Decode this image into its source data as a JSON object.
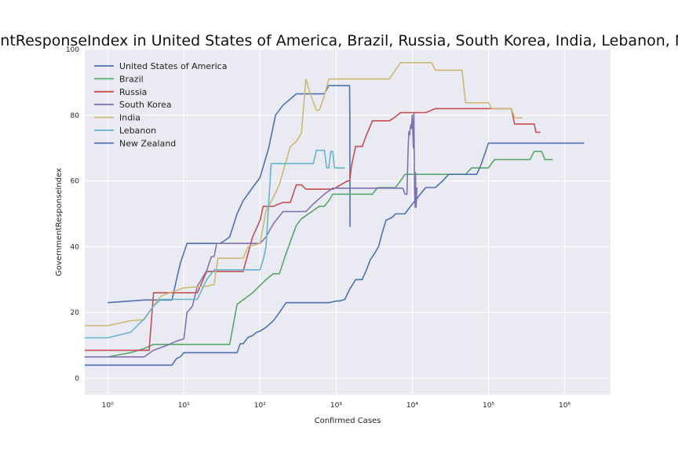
{
  "chart_data": {
    "type": "line",
    "title": "GovernmentResponseIndex in United States of America, Brazil, Russia, South Korea, India, Lebanon, New Zealand",
    "xlabel": "Confirmed Cases",
    "ylabel": "GovernmentResponseIndex",
    "xscale": "log",
    "xlim": [
      0.5,
      4000000
    ],
    "ylim": [
      -5,
      100
    ],
    "xticks": [
      {
        "value": 1,
        "label": "10⁰"
      },
      {
        "value": 10,
        "label": "10¹"
      },
      {
        "value": 100,
        "label": "10²"
      },
      {
        "value": 1000,
        "label": "10³"
      },
      {
        "value": 10000,
        "label": "10⁴"
      },
      {
        "value": 100000,
        "label": "10⁵"
      },
      {
        "value": 1000000,
        "label": "10⁶"
      }
    ],
    "yticks": [
      0,
      20,
      40,
      60,
      80,
      100
    ],
    "grid": true,
    "legend_position": "top-left",
    "background": "#eaeaf2",
    "series": [
      {
        "name": "United States of America",
        "color": "#4c72b0",
        "points": [
          [
            1,
            23
          ],
          [
            2,
            23.5
          ],
          [
            3,
            23.8
          ],
          [
            5,
            23.8
          ],
          [
            7,
            23.8
          ],
          [
            8,
            30
          ],
          [
            9,
            35
          ],
          [
            11,
            41
          ],
          [
            20,
            41
          ],
          [
            25,
            41
          ],
          [
            30,
            41
          ],
          [
            35,
            42
          ],
          [
            40,
            43
          ],
          [
            50,
            50
          ],
          [
            60,
            54
          ],
          [
            80,
            58
          ],
          [
            100,
            61
          ],
          [
            130,
            70
          ],
          [
            160,
            80
          ],
          [
            200,
            83
          ],
          [
            300,
            86.5
          ],
          [
            500,
            86.5
          ],
          [
            700,
            86.5
          ],
          [
            800,
            89
          ],
          [
            1500,
            89
          ],
          [
            1510,
            80
          ],
          [
            1520,
            46
          ]
        ]
      },
      {
        "name": "Brazil",
        "color": "#55a868",
        "points": [
          [
            1,
            6.5
          ],
          [
            2,
            7.8
          ],
          [
            3,
            9
          ],
          [
            4,
            10.3
          ],
          [
            10,
            10.3
          ],
          [
            40,
            10.3
          ],
          [
            50,
            22.5
          ],
          [
            80,
            26
          ],
          [
            120,
            30
          ],
          [
            150,
            31.8
          ],
          [
            180,
            31.8
          ],
          [
            220,
            38
          ],
          [
            300,
            46.5
          ],
          [
            350,
            48.5
          ],
          [
            500,
            51
          ],
          [
            600,
            52.3
          ],
          [
            700,
            52.3
          ],
          [
            800,
            54
          ],
          [
            900,
            56
          ],
          [
            1200,
            56
          ],
          [
            2000,
            56
          ],
          [
            3000,
            56
          ],
          [
            3500,
            58
          ],
          [
            6000,
            58
          ],
          [
            7000,
            60
          ],
          [
            8000,
            62
          ],
          [
            10000,
            62
          ],
          [
            50000,
            62
          ],
          [
            60000,
            64
          ],
          [
            80000,
            64
          ],
          [
            100000,
            64
          ],
          [
            120000,
            66.5
          ],
          [
            200000,
            66.5
          ],
          [
            350000,
            66.5
          ],
          [
            400000,
            69
          ],
          [
            500000,
            69
          ],
          [
            550000,
            66.5
          ],
          [
            700000,
            66.5
          ]
        ]
      },
      {
        "name": "Russia",
        "color": "#c44e52",
        "points": [
          [
            0.5,
            8.5
          ],
          [
            1,
            8.5
          ],
          [
            3,
            8.5
          ],
          [
            3.5,
            8.5
          ],
          [
            4,
            26
          ],
          [
            5,
            26
          ],
          [
            10,
            26
          ],
          [
            15,
            26
          ],
          [
            20,
            32.5
          ],
          [
            40,
            32.5
          ],
          [
            60,
            32.5
          ],
          [
            80,
            43
          ],
          [
            100,
            48
          ],
          [
            110,
            52.3
          ],
          [
            150,
            52.3
          ],
          [
            200,
            53.5
          ],
          [
            250,
            53.5
          ],
          [
            300,
            58.8
          ],
          [
            350,
            58.8
          ],
          [
            400,
            57.5
          ],
          [
            600,
            57.5
          ],
          [
            900,
            57.5
          ],
          [
            1000,
            58
          ],
          [
            1400,
            60
          ],
          [
            1500,
            60
          ],
          [
            1600,
            65
          ],
          [
            1800,
            70.5
          ],
          [
            2200,
            70.5
          ],
          [
            2500,
            74
          ],
          [
            3000,
            78.3
          ],
          [
            5000,
            78.3
          ],
          [
            6000,
            79.5
          ],
          [
            7000,
            80.8
          ],
          [
            10000,
            80.8
          ],
          [
            15000,
            80.8
          ],
          [
            20000,
            82
          ],
          [
            50000,
            82
          ],
          [
            100000,
            82
          ],
          [
            200000,
            82
          ],
          [
            220000,
            77.3
          ],
          [
            350000,
            77.3
          ],
          [
            400000,
            77.3
          ],
          [
            420000,
            74.8
          ],
          [
            480000,
            74.8
          ]
        ]
      },
      {
        "name": "South Korea",
        "color": "#8172b2",
        "points": [
          [
            0.5,
            6.5
          ],
          [
            1,
            6.5
          ],
          [
            2,
            6.5
          ],
          [
            3,
            6.5
          ],
          [
            4,
            8.5
          ],
          [
            6,
            10
          ],
          [
            8,
            11.3
          ],
          [
            10,
            12
          ],
          [
            11,
            20
          ],
          [
            12,
            21
          ],
          [
            13,
            22
          ],
          [
            15,
            28
          ],
          [
            17,
            30
          ],
          [
            20,
            32.8
          ],
          [
            23,
            37
          ],
          [
            25,
            37
          ],
          [
            27,
            41
          ],
          [
            30,
            41
          ],
          [
            60,
            41
          ],
          [
            100,
            41
          ],
          [
            120,
            43
          ],
          [
            150,
            47
          ],
          [
            200,
            50.7
          ],
          [
            300,
            50.7
          ],
          [
            400,
            50.7
          ],
          [
            500,
            53
          ],
          [
            700,
            56
          ],
          [
            900,
            57.8
          ],
          [
            2000,
            57.8
          ],
          [
            5000,
            57.8
          ],
          [
            7500,
            57.8
          ],
          [
            8000,
            56
          ],
          [
            8500,
            56
          ],
          [
            8800,
            70
          ],
          [
            9000,
            75
          ],
          [
            9200,
            74
          ],
          [
            9500,
            77
          ],
          [
            9700,
            76
          ],
          [
            10000,
            80
          ],
          [
            10300,
            70
          ],
          [
            10500,
            80.5
          ],
          [
            10700,
            57
          ],
          [
            10900,
            52
          ],
          [
            11000,
            62.5
          ],
          [
            11200,
            52
          ],
          [
            11500,
            58
          ]
        ]
      },
      {
        "name": "India",
        "color": "#ccb974",
        "points": [
          [
            0.5,
            16
          ],
          [
            1,
            16
          ],
          [
            2,
            17.5
          ],
          [
            3,
            17.8
          ],
          [
            4,
            22
          ],
          [
            5,
            25
          ],
          [
            10,
            27.5
          ],
          [
            20,
            28
          ],
          [
            25,
            28.5
          ],
          [
            28,
            36.5
          ],
          [
            40,
            36.5
          ],
          [
            50,
            36.5
          ],
          [
            60,
            36.5
          ],
          [
            70,
            40
          ],
          [
            100,
            41
          ],
          [
            120,
            51
          ],
          [
            150,
            55
          ],
          [
            180,
            59
          ],
          [
            250,
            70.5
          ],
          [
            300,
            72
          ],
          [
            350,
            74.5
          ],
          [
            400,
            91
          ],
          [
            450,
            87
          ],
          [
            550,
            81.5
          ],
          [
            600,
            81.5
          ],
          [
            700,
            86
          ],
          [
            800,
            91
          ],
          [
            1000,
            91
          ],
          [
            3000,
            91
          ],
          [
            5000,
            91
          ],
          [
            7000,
            96
          ],
          [
            10000,
            96
          ],
          [
            15000,
            96
          ],
          [
            18000,
            96
          ],
          [
            20000,
            93.7
          ],
          [
            40000,
            93.7
          ],
          [
            45000,
            93.7
          ],
          [
            50000,
            83.8
          ],
          [
            80000,
            83.8
          ],
          [
            100000,
            83.8
          ],
          [
            110000,
            82
          ],
          [
            200000,
            82
          ],
          [
            220000,
            79.2
          ],
          [
            280000,
            79.2
          ]
        ]
      },
      {
        "name": "Lebanon",
        "color": "#64b5cd",
        "points": [
          [
            0.5,
            12.3
          ],
          [
            1,
            12.3
          ],
          [
            2,
            14
          ],
          [
            3,
            18
          ],
          [
            4,
            22
          ],
          [
            5,
            24
          ],
          [
            10,
            24
          ],
          [
            15,
            24
          ],
          [
            20,
            30
          ],
          [
            25,
            33
          ],
          [
            40,
            33
          ],
          [
            60,
            33
          ],
          [
            80,
            33
          ],
          [
            100,
            33
          ],
          [
            110,
            36
          ],
          [
            120,
            40
          ],
          [
            130,
            53
          ],
          [
            140,
            65.3
          ],
          [
            300,
            65.3
          ],
          [
            500,
            65.3
          ],
          [
            550,
            69.3
          ],
          [
            700,
            69.3
          ],
          [
            750,
            64
          ],
          [
            800,
            64
          ],
          [
            850,
            69
          ],
          [
            900,
            69
          ],
          [
            950,
            64
          ],
          [
            1100,
            64
          ],
          [
            1300,
            64
          ]
        ]
      },
      {
        "name": "New Zealand",
        "color": "#4c72b0",
        "points": [
          [
            0.5,
            4
          ],
          [
            1,
            4
          ],
          [
            5,
            4
          ],
          [
            7,
            4
          ],
          [
            8,
            6
          ],
          [
            9,
            6.5
          ],
          [
            10,
            7.8
          ],
          [
            20,
            7.8
          ],
          [
            40,
            7.8
          ],
          [
            50,
            7.8
          ],
          [
            55,
            10.5
          ],
          [
            60,
            10.5
          ],
          [
            70,
            12.5
          ],
          [
            80,
            13
          ],
          [
            90,
            14
          ],
          [
            100,
            14.3
          ],
          [
            120,
            15.5
          ],
          [
            150,
            17.5
          ],
          [
            180,
            20
          ],
          [
            220,
            23
          ],
          [
            300,
            23
          ],
          [
            500,
            23
          ],
          [
            700,
            23
          ],
          [
            800,
            23
          ],
          [
            1000,
            23.5
          ],
          [
            1100,
            23.5
          ],
          [
            1300,
            24
          ],
          [
            1500,
            27
          ],
          [
            1800,
            30
          ],
          [
            2200,
            30
          ],
          [
            2500,
            33
          ],
          [
            2800,
            36
          ],
          [
            3200,
            38
          ],
          [
            3600,
            40
          ],
          [
            4000,
            44
          ],
          [
            4500,
            48
          ],
          [
            5500,
            49
          ],
          [
            6000,
            50
          ],
          [
            8000,
            50
          ],
          [
            10000,
            53
          ],
          [
            15000,
            58
          ],
          [
            20000,
            58
          ],
          [
            25000,
            60
          ],
          [
            30000,
            62
          ],
          [
            50000,
            62
          ],
          [
            60000,
            62
          ],
          [
            70000,
            62
          ],
          [
            80000,
            65
          ],
          [
            100000,
            71.5
          ],
          [
            500000,
            71.5
          ],
          [
            1000000,
            71.5
          ],
          [
            1800000,
            71.5
          ]
        ]
      }
    ]
  }
}
